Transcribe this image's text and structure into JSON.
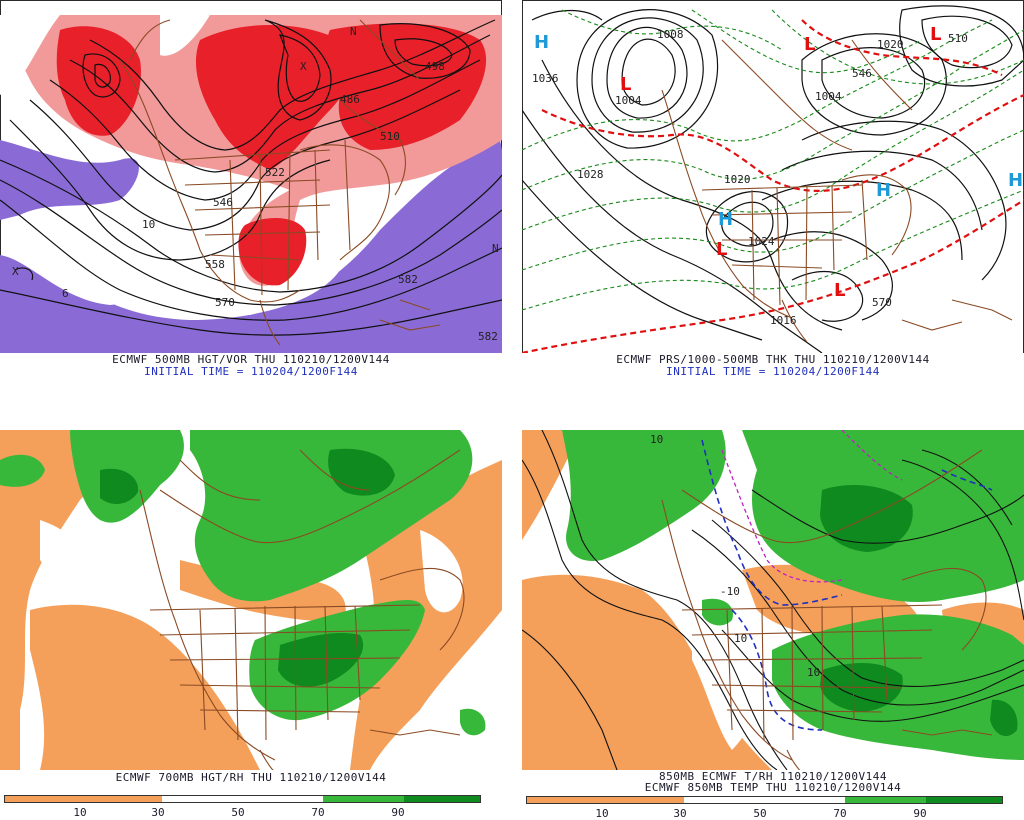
{
  "panels": [
    {
      "id": "p500",
      "caption1": "ECMWF 500MB HGT/VOR THU 110210/1200V144",
      "caption2": "INITIAL TIME = 110204/1200F144",
      "contour_labels": [
        "558",
        "570",
        "582",
        "582",
        "546",
        "522",
        "510",
        "486",
        "498",
        "10",
        "6",
        "N",
        "X",
        "X",
        "N"
      ]
    },
    {
      "id": "pprs",
      "caption1": "ECMWF PRS/1000-500MB THK THU 110210/1200V144",
      "caption2": "INITIAL TIME = 110204/1200F144",
      "contour_labels": [
        "1036",
        "1004",
        "1028",
        "1020",
        "1024",
        "1016",
        "1004",
        "1008",
        "1020",
        "570",
        "546",
        "510"
      ],
      "highs": [
        "H",
        "H",
        "H",
        "H"
      ],
      "lows": [
        "L",
        "L",
        "L",
        "L",
        "L"
      ]
    },
    {
      "id": "p700",
      "caption1": "ECMWF 700MB HGT/RH THU 110210/1200V144",
      "colorbar_labels": [
        "10",
        "30",
        "50",
        "70",
        "90"
      ]
    },
    {
      "id": "p850",
      "caption1": "850MB ECMWF T/RH 110210/1200V144",
      "caption2": "ECMWF 850MB TEMP THU 110210/1200V144",
      "contour_labels": [
        "10",
        "10",
        "10",
        "-10"
      ],
      "colorbar_labels": [
        "10",
        "30",
        "50",
        "70",
        "90"
      ]
    }
  ],
  "colors": {
    "vorticity_red": "#e8202a",
    "vorticity_pink": "#f29a9a",
    "vorticity_purple": "#8a6bd6",
    "rh_dry_orange": "#f4a05a",
    "rh_moist_green": "#38b83a",
    "rh_dark_green": "#0e8a1e",
    "borders_brown": "#8a4a24",
    "thickness_red": "#e01010",
    "thickness_green": "#1a8a1a",
    "high_cyan": "#1e9ad6",
    "low_red": "#e01010"
  }
}
